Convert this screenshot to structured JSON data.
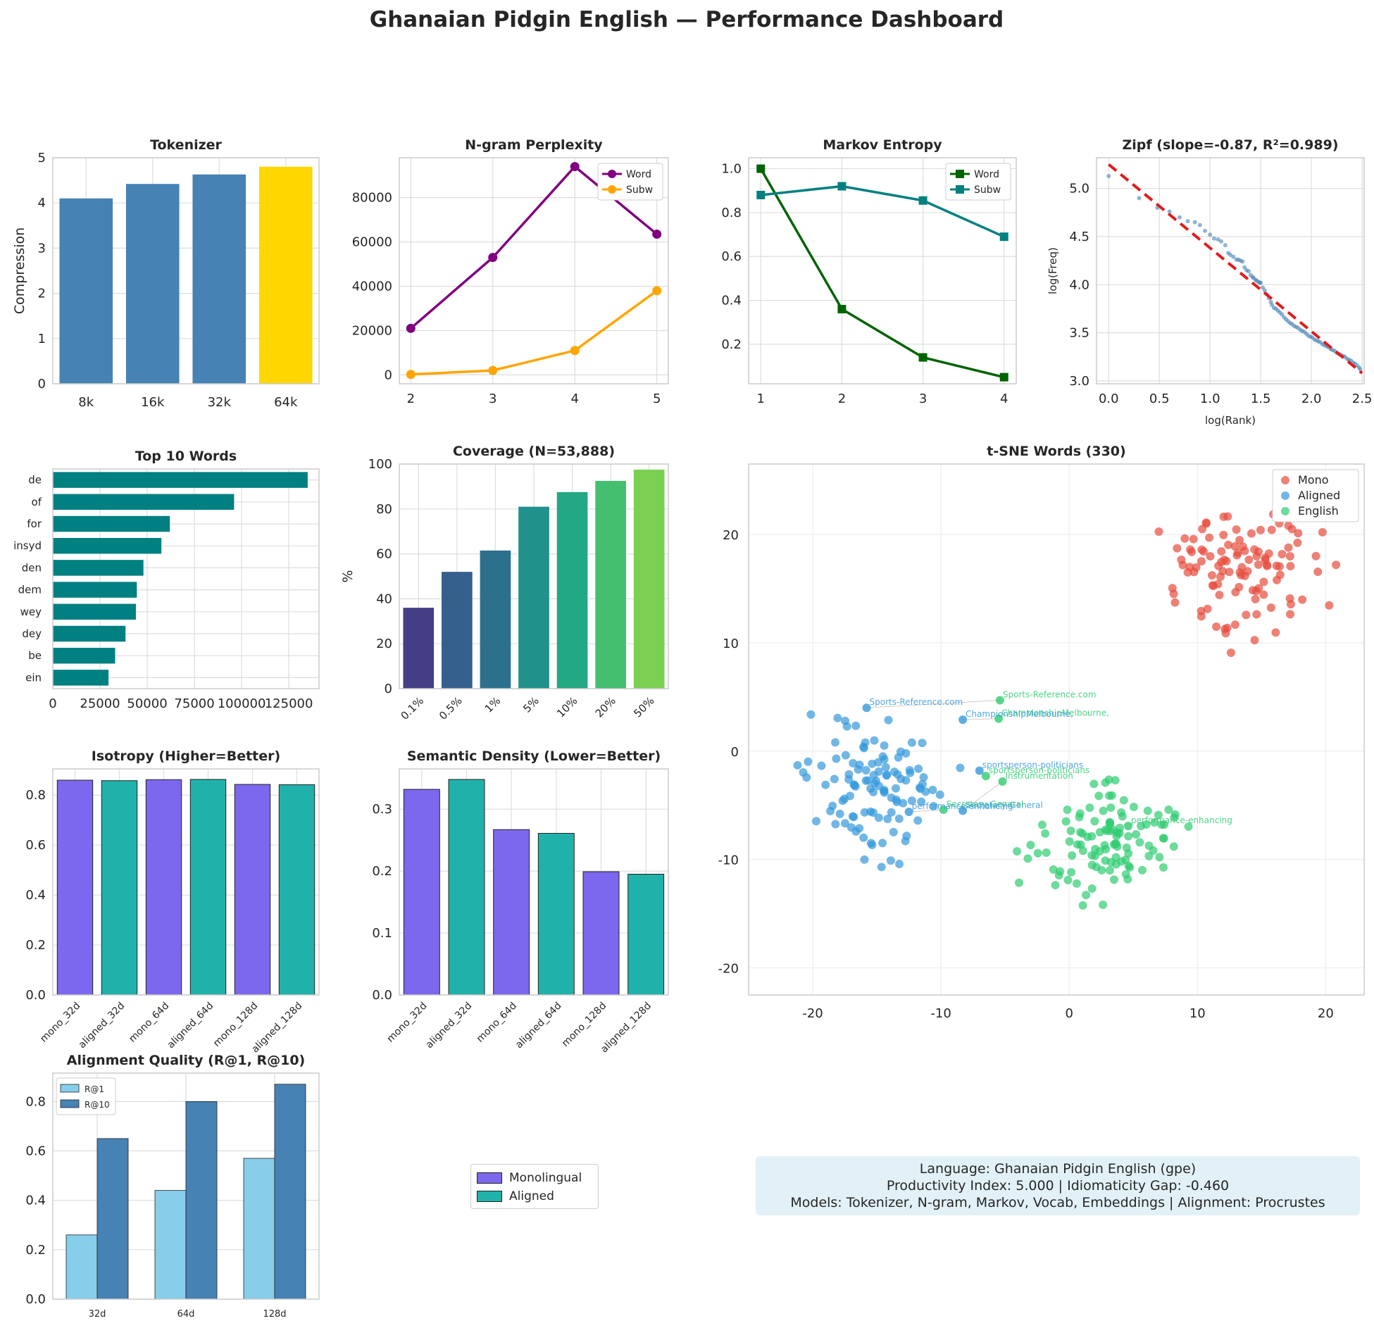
{
  "title": "Ghanaian Pidgin English — Performance Dashboard",
  "colors": {
    "steel": "#4682b4",
    "gold": "#ffd700",
    "purple": "#800080",
    "orange": "#ffa500",
    "darkgreen": "#006400",
    "teal": "#008080",
    "red": "#e31a1c",
    "mono": "#e74c3c",
    "aligned": "#3498db",
    "english": "#2ecc71",
    "violet": "#7b68ee",
    "lightseagreen": "#20b2aa",
    "skyblue": "#87ceeb"
  },
  "chart_data": [
    {
      "id": "tokenizer",
      "type": "bar",
      "title": "Tokenizer",
      "ylabel": "Compression",
      "categories": [
        "8k",
        "16k",
        "32k",
        "64k"
      ],
      "values": [
        4.1,
        4.42,
        4.63,
        4.8
      ],
      "highlight_index": 3,
      "ylim": [
        0,
        5
      ],
      "yticks": [
        "0",
        "1",
        "2",
        "3",
        "4",
        "5"
      ]
    },
    {
      "id": "ngram",
      "type": "line",
      "title": "N-gram Perplexity",
      "x": [
        2,
        3,
        4,
        5
      ],
      "xticks": [
        "2",
        "3",
        "4",
        "5"
      ],
      "ylim": [
        -4000,
        98000
      ],
      "yticks": [
        "0",
        "20000",
        "40000",
        "60000",
        "80000"
      ],
      "legend": "top-right",
      "series": [
        {
          "name": "Word",
          "values": [
            21000,
            53000,
            94000,
            63500
          ]
        },
        {
          "name": "Subw",
          "values": [
            200,
            2000,
            11000,
            38000
          ]
        }
      ]
    },
    {
      "id": "markov",
      "type": "line",
      "title": "Markov Entropy",
      "x": [
        1,
        2,
        3,
        4
      ],
      "xticks": [
        "1",
        "2",
        "3",
        "4"
      ],
      "ylim": [
        0.02,
        1.05
      ],
      "yticks": [
        "0.2",
        "0.4",
        "0.6",
        "0.8",
        "1.0"
      ],
      "legend": "top-right",
      "series": [
        {
          "name": "Word",
          "values": [
            1.0,
            0.36,
            0.14,
            0.05
          ]
        },
        {
          "name": "Subw",
          "values": [
            0.88,
            0.92,
            0.855,
            0.69
          ]
        }
      ]
    },
    {
      "id": "zipf",
      "type": "scatter",
      "title": "Zipf (slope=-0.87, R²=0.989)",
      "xlabel": "log(Rank)",
      "ylabel": "log(Freq)",
      "xlim": [
        -0.12,
        2.52
      ],
      "ylim": [
        2.97,
        5.32
      ],
      "xticks": [
        "0.0",
        "0.5",
        "1.0",
        "1.5",
        "2.0",
        "2.5"
      ],
      "yticks": [
        "3.0",
        "3.5",
        "4.0",
        "4.5",
        "5.0"
      ],
      "fit": {
        "x": [
          0.0,
          2.5
        ],
        "y": [
          5.25,
          3.08
        ]
      },
      "points": [
        [
          0.0,
          5.13
        ],
        [
          0.3,
          4.9
        ],
        [
          0.48,
          4.8
        ],
        [
          0.6,
          4.76
        ],
        [
          0.7,
          4.7
        ],
        [
          0.78,
          4.66
        ],
        [
          0.85,
          4.65
        ],
        [
          0.9,
          4.62
        ],
        [
          0.95,
          4.56
        ],
        [
          1.0,
          4.52
        ],
        [
          1.04,
          4.48
        ],
        [
          1.08,
          4.47
        ],
        [
          1.11,
          4.45
        ],
        [
          1.15,
          4.41
        ],
        [
          1.18,
          4.33
        ],
        [
          1.2,
          4.31
        ],
        [
          1.23,
          4.29
        ],
        [
          1.26,
          4.26
        ],
        [
          1.28,
          4.26
        ],
        [
          1.3,
          4.25
        ],
        [
          1.32,
          4.24
        ],
        [
          1.34,
          4.18
        ],
        [
          1.36,
          4.15
        ],
        [
          1.38,
          4.14
        ],
        [
          1.4,
          4.1
        ],
        [
          1.42,
          4.08
        ],
        [
          1.43,
          4.07
        ],
        [
          1.45,
          4.05
        ],
        [
          1.46,
          4.04
        ],
        [
          1.48,
          4.03
        ],
        [
          1.49,
          4.02
        ],
        [
          1.5,
          4.02
        ],
        [
          1.52,
          3.97
        ],
        [
          1.54,
          3.94
        ],
        [
          1.56,
          3.9
        ],
        [
          1.58,
          3.86
        ],
        [
          1.6,
          3.82
        ],
        [
          1.61,
          3.79
        ],
        [
          1.63,
          3.76
        ],
        [
          1.65,
          3.75
        ],
        [
          1.67,
          3.73
        ],
        [
          1.69,
          3.71
        ],
        [
          1.71,
          3.69
        ],
        [
          1.73,
          3.66
        ],
        [
          1.75,
          3.64
        ],
        [
          1.77,
          3.62
        ],
        [
          1.79,
          3.6
        ],
        [
          1.81,
          3.59
        ],
        [
          1.83,
          3.57
        ],
        [
          1.85,
          3.56
        ],
        [
          1.87,
          3.55
        ],
        [
          1.89,
          3.53
        ],
        [
          1.91,
          3.52
        ],
        [
          1.93,
          3.51
        ],
        [
          1.95,
          3.49
        ],
        [
          1.97,
          3.47
        ],
        [
          1.99,
          3.46
        ],
        [
          2.01,
          3.45
        ],
        [
          2.03,
          3.43
        ],
        [
          2.05,
          3.42
        ],
        [
          2.07,
          3.41
        ],
        [
          2.09,
          3.4
        ],
        [
          2.11,
          3.38
        ],
        [
          2.13,
          3.37
        ],
        [
          2.15,
          3.36
        ],
        [
          2.17,
          3.35
        ],
        [
          2.19,
          3.33
        ],
        [
          2.21,
          3.32
        ],
        [
          2.23,
          3.31
        ],
        [
          2.25,
          3.29
        ],
        [
          2.27,
          3.28
        ],
        [
          2.29,
          3.27
        ],
        [
          2.31,
          3.26
        ],
        [
          2.33,
          3.25
        ],
        [
          2.35,
          3.23
        ],
        [
          2.37,
          3.22
        ],
        [
          2.39,
          3.21
        ],
        [
          2.41,
          3.19
        ],
        [
          2.43,
          3.18
        ],
        [
          2.45,
          3.16
        ],
        [
          2.47,
          3.14
        ],
        [
          2.48,
          3.12
        ]
      ]
    },
    {
      "id": "topwords",
      "type": "bar",
      "orientation": "horizontal",
      "title": "Top 10 Words",
      "categories": [
        "de",
        "of",
        "for",
        "insyd",
        "den",
        "dem",
        "wey",
        "dey",
        "be",
        "ein"
      ],
      "values": [
        135000,
        96000,
        62000,
        57500,
        48000,
        44500,
        44000,
        38500,
        33000,
        29500
      ],
      "xlim": [
        0,
        141000
      ],
      "xticks": [
        "0",
        "25000",
        "50000",
        "75000",
        "100000",
        "125000"
      ]
    },
    {
      "id": "coverage",
      "type": "bar",
      "title": "Coverage (N=53,888)",
      "ylabel": "%",
      "categories": [
        "0.1%",
        "0.5%",
        "1%",
        "5%",
        "10%",
        "20%",
        "50%"
      ],
      "values": [
        36,
        52,
        61.5,
        81,
        87.5,
        92.5,
        97.5
      ],
      "colors": [
        "#433e85",
        "#355f8d",
        "#2d708e",
        "#21918c",
        "#23a884",
        "#44bf70",
        "#7ad151"
      ],
      "ylim": [
        0,
        100
      ],
      "yticks": [
        "0",
        "20",
        "40",
        "60",
        "80",
        "100"
      ]
    },
    {
      "id": "tsne",
      "type": "scatter",
      "title": "t-SNE Words (330)",
      "xlim": [
        -25,
        23
      ],
      "ylim": [
        -22.5,
        26.5
      ],
      "xticks": [
        "-20",
        "-10",
        "0",
        "10",
        "20"
      ],
      "yticks": [
        "-20",
        "-10",
        "0",
        "10",
        "20"
      ],
      "legend": "top-right",
      "series": [
        {
          "name": "Mono"
        },
        {
          "name": "Aligned"
        },
        {
          "name": "English"
        }
      ],
      "annotations": [
        {
          "text": "Sports-Reference.com",
          "x": -15.8,
          "y": 4.0,
          "series": "Aligned"
        },
        {
          "text": "Sports-Reference.com",
          "x": -5.4,
          "y": 4.7,
          "series": "English"
        },
        {
          "text": "ChampionshipMelbourne,",
          "x": -5.5,
          "y": 3.0,
          "series": "English"
        },
        {
          "text": "ChampionshipMelbourne,",
          "x": -8.3,
          "y": 2.9,
          "series": "Aligned"
        },
        {
          "text": "sportsperson-politicians",
          "x": -7.0,
          "y": -1.8,
          "series": "Aligned"
        },
        {
          "text": "sportsperson-politicians",
          "x": -6.5,
          "y": -2.3,
          "series": "English"
        },
        {
          "text": "Instrumentation",
          "x": -5.2,
          "y": -2.8,
          "series": "English"
        },
        {
          "text": "Secretary-General",
          "x": -8.3,
          "y": -5.5,
          "series": "Aligned"
        },
        {
          "text": "Secretary-General",
          "x": -9.8,
          "y": -5.4,
          "series": "English"
        },
        {
          "text": "performance-enhancing",
          "x": -12.5,
          "y": -5.6,
          "series": "Aligned"
        },
        {
          "text": "performance-enhancing",
          "x": 4.6,
          "y": -6.9,
          "series": "English"
        }
      ]
    },
    {
      "id": "isotropy",
      "type": "bar",
      "title": "Isotropy (Higher=Better)",
      "categories": [
        "mono_32d",
        "aligned_32d",
        "mono_64d",
        "aligned_64d",
        "mono_128d",
        "aligned_128d"
      ],
      "values": [
        0.86,
        0.858,
        0.862,
        0.863,
        0.843,
        0.842
      ],
      "ylim": [
        0,
        0.905
      ],
      "yticks": [
        "0.0",
        "0.2",
        "0.4",
        "0.6",
        "0.8"
      ]
    },
    {
      "id": "density",
      "type": "bar",
      "title": "Semantic Density (Lower=Better)",
      "categories": [
        "mono_32d",
        "aligned_32d",
        "mono_64d",
        "aligned_64d",
        "mono_128d",
        "aligned_128d"
      ],
      "values": [
        0.332,
        0.348,
        0.267,
        0.261,
        0.199,
        0.195
      ],
      "ylim": [
        0,
        0.365
      ],
      "yticks": [
        "0.0",
        "0.1",
        "0.2",
        "0.3"
      ]
    },
    {
      "id": "alignment",
      "type": "bar",
      "title": "Alignment Quality (R@1, R@10)",
      "categories": [
        "32d",
        "64d",
        "128d"
      ],
      "series": [
        {
          "name": "R@1",
          "values": [
            0.26,
            0.44,
            0.57
          ]
        },
        {
          "name": "R@10",
          "values": [
            0.65,
            0.8,
            0.87
          ]
        }
      ],
      "ylim": [
        0,
        0.915
      ],
      "yticks": [
        "0.0",
        "0.2",
        "0.4",
        "0.6",
        "0.8"
      ],
      "legend": "top-left"
    }
  ],
  "embed_legend": {
    "items": [
      {
        "label": "Monolingual"
      },
      {
        "label": "Aligned"
      }
    ]
  },
  "info": {
    "line1": "Language: Ghanaian Pidgin English (gpe)",
    "line2": "Productivity Index: 5.000  |  Idiomaticity Gap: -0.460",
    "line3": "Models: Tokenizer, N-gram, Markov, Vocab, Embeddings  |  Alignment: Procrustes"
  }
}
